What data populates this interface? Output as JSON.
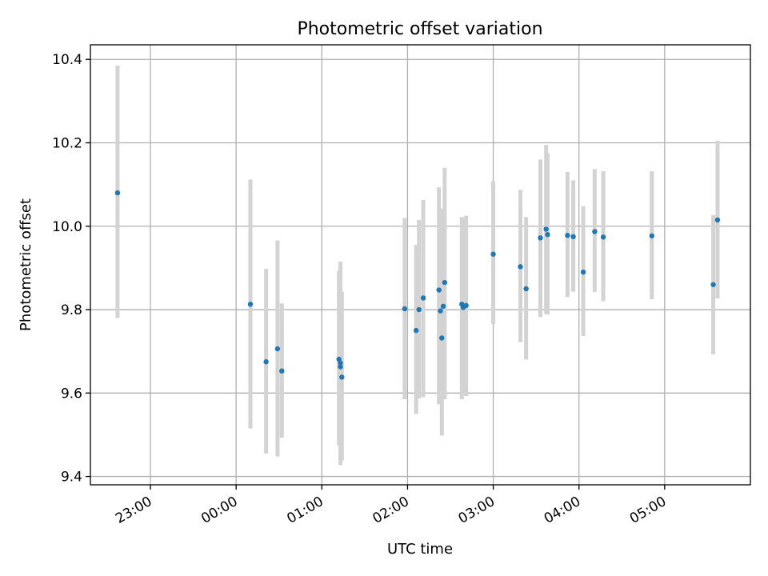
{
  "chart_data": {
    "type": "scatter",
    "title": "Photometric offset variation",
    "xlabel": "UTC time",
    "ylabel": "Photometric offset",
    "x_unit": "UTC HH:MM",
    "xlim": [
      "22:18",
      "06:00"
    ],
    "ylim": [
      9.38,
      10.435
    ],
    "x_ticks": [
      "23:00",
      "00:00",
      "01:00",
      "02:00",
      "03:00",
      "04:00",
      "05:00"
    ],
    "y_ticks": [
      "9.4",
      "9.6",
      "9.8",
      "10.0",
      "10.2",
      "10.4"
    ],
    "grid": true,
    "x_tick_rotation": "30",
    "colors": {
      "marker": "#1f77b4",
      "errorbar": "#d3d3d3",
      "grid": "#b0b0b0"
    },
    "series": [
      {
        "points": [
          {
            "x": "22:37",
            "y": 10.08,
            "ylo": 9.78,
            "yhi": 10.385
          },
          {
            "x": "00:10",
            "y": 9.813,
            "ylo": 9.515,
            "yhi": 10.112
          },
          {
            "x": "00:21",
            "y": 9.675,
            "ylo": 9.455,
            "yhi": 9.898
          },
          {
            "x": "00:29",
            "y": 9.706,
            "ylo": 9.448,
            "yhi": 9.966
          },
          {
            "x": "00:32",
            "y": 9.653,
            "ylo": 9.493,
            "yhi": 9.815
          },
          {
            "x": "01:12",
            "y": 9.681,
            "ylo": 9.475,
            "yhi": 9.893
          },
          {
            "x": "01:13",
            "y": 9.672,
            "ylo": 9.428,
            "yhi": 9.915
          },
          {
            "x": "01:13",
            "y": 9.663,
            "ylo": 9.452,
            "yhi": 9.867
          },
          {
            "x": "01:14",
            "y": 9.638,
            "ylo": 9.438,
            "yhi": 9.843
          },
          {
            "x": "01:58",
            "y": 9.802,
            "ylo": 9.585,
            "yhi": 10.02
          },
          {
            "x": "02:06",
            "y": 9.75,
            "ylo": 9.55,
            "yhi": 9.955
          },
          {
            "x": "02:08",
            "y": 9.8,
            "ylo": 9.587,
            "yhi": 10.015
          },
          {
            "x": "02:11",
            "y": 9.828,
            "ylo": 9.59,
            "yhi": 10.063
          },
          {
            "x": "02:22",
            "y": 9.847,
            "ylo": 9.573,
            "yhi": 10.093
          },
          {
            "x": "02:23",
            "y": 9.797,
            "ylo": 9.575,
            "yhi": 10.027
          },
          {
            "x": "02:24",
            "y": 9.732,
            "ylo": 9.498,
            "yhi": 10.042
          },
          {
            "x": "02:25",
            "y": 9.808,
            "ylo": 9.59,
            "yhi": 10.027
          },
          {
            "x": "02:26",
            "y": 9.865,
            "ylo": 9.585,
            "yhi": 10.14
          },
          {
            "x": "02:38",
            "y": 9.813,
            "ylo": 9.585,
            "yhi": 10.022
          },
          {
            "x": "02:39",
            "y": 9.805,
            "ylo": 9.598,
            "yhi": 10.018
          },
          {
            "x": "02:41",
            "y": 9.81,
            "ylo": 9.593,
            "yhi": 10.025
          },
          {
            "x": "03:00",
            "y": 9.933,
            "ylo": 9.765,
            "yhi": 10.108
          },
          {
            "x": "03:19",
            "y": 9.903,
            "ylo": 9.722,
            "yhi": 10.087
          },
          {
            "x": "03:23",
            "y": 9.85,
            "ylo": 9.68,
            "yhi": 10.022
          },
          {
            "x": "03:33",
            "y": 9.972,
            "ylo": 9.782,
            "yhi": 10.16
          },
          {
            "x": "03:37",
            "y": 9.993,
            "ylo": 9.79,
            "yhi": 10.195
          },
          {
            "x": "03:38",
            "y": 9.98,
            "ylo": 9.788,
            "yhi": 10.175
          },
          {
            "x": "03:52",
            "y": 9.978,
            "ylo": 9.83,
            "yhi": 10.13
          },
          {
            "x": "03:56",
            "y": 9.975,
            "ylo": 9.843,
            "yhi": 10.11
          },
          {
            "x": "04:03",
            "y": 9.89,
            "ylo": 9.737,
            "yhi": 10.048
          },
          {
            "x": "04:11",
            "y": 9.987,
            "ylo": 9.842,
            "yhi": 10.137
          },
          {
            "x": "04:17",
            "y": 9.974,
            "ylo": 9.82,
            "yhi": 10.132
          },
          {
            "x": "04:51",
            "y": 9.977,
            "ylo": 9.825,
            "yhi": 10.132
          },
          {
            "x": "05:34",
            "y": 9.86,
            "ylo": 9.693,
            "yhi": 10.027
          },
          {
            "x": "05:37",
            "y": 10.015,
            "ylo": 9.827,
            "yhi": 10.205
          }
        ]
      }
    ]
  }
}
